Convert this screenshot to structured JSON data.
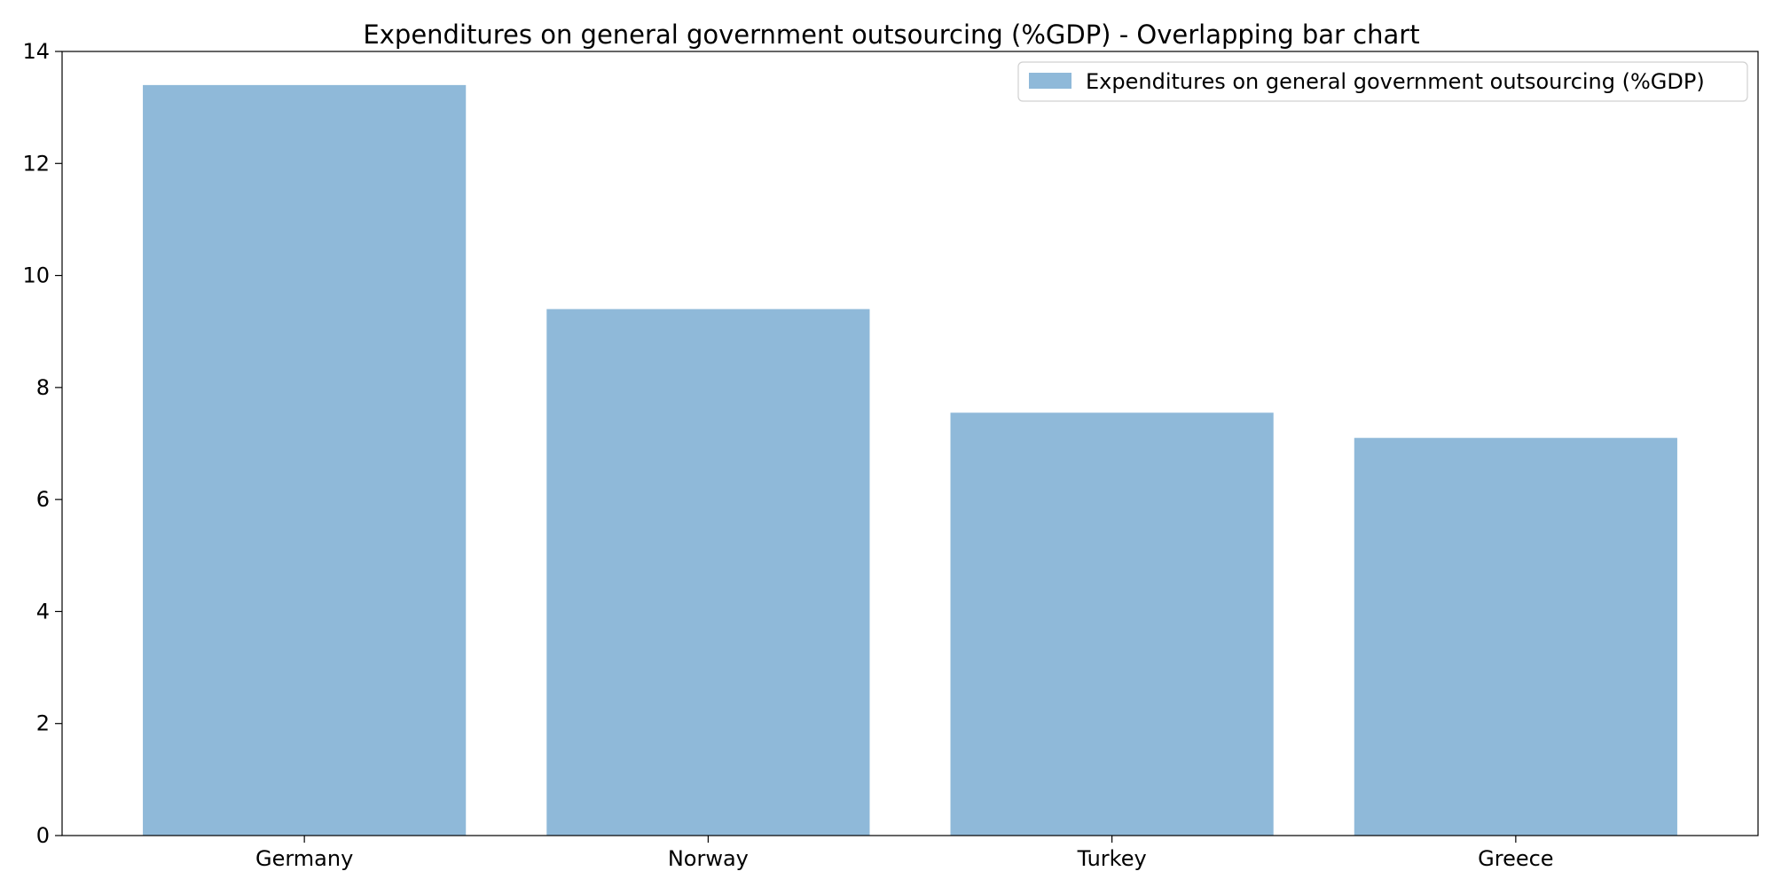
{
  "chart_data": {
    "type": "bar",
    "title": "Expenditures on general government outsourcing (%GDP) - Overlapping bar chart",
    "xlabel": "",
    "ylabel": "",
    "categories": [
      "Germany",
      "Norway",
      "Turkey",
      "Greece"
    ],
    "series": [
      {
        "name": "Expenditures on general government outsourcing (%GDP)",
        "values": [
          13.4,
          9.4,
          7.55,
          7.1
        ],
        "color": "#8fb9d9"
      }
    ],
    "ylim": [
      0,
      14
    ],
    "yticks": [
      0,
      2,
      4,
      6,
      8,
      10,
      12,
      14
    ],
    "grid": false,
    "legend_position": "top-right"
  }
}
